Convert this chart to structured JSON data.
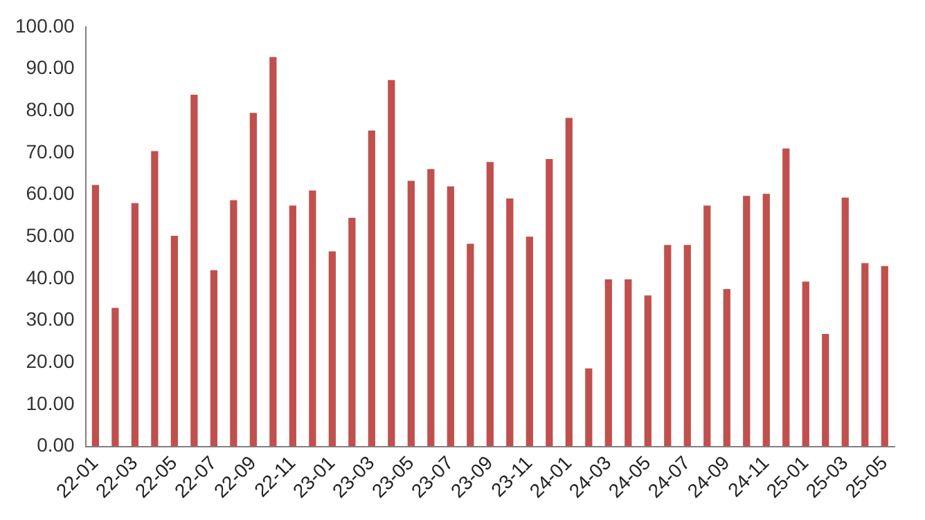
{
  "chart_data": {
    "type": "bar",
    "categories": [
      "22-01",
      null,
      "22-03",
      null,
      "22-05",
      null,
      "22-07",
      null,
      "22-09",
      null,
      "22-11",
      null,
      "23-01",
      null,
      "23-03",
      null,
      "23-05",
      null,
      "23-07",
      null,
      "23-09",
      null,
      "23-11",
      null,
      "24-01",
      null,
      "24-03",
      null,
      "24-05",
      null,
      "24-07",
      null,
      "24-09",
      null,
      "24-11",
      null,
      "25-01",
      null,
      "25-03",
      null,
      "25-05"
    ],
    "values": [
      62.3,
      33,
      58,
      70.4,
      50.2,
      83.8,
      42,
      58.7,
      79.5,
      92.8,
      57.4,
      61,
      46.5,
      54.5,
      75.3,
      87.3,
      63.3,
      66.1,
      62,
      48.3,
      67.8,
      59.1,
      50,
      68.5,
      78.3,
      18.6,
      39.8,
      39.8,
      36,
      48,
      48,
      57.4,
      37.5,
      59.7,
      60.2,
      71,
      39.3,
      26.8,
      59.3,
      43.7,
      43
    ],
    "color": "#c0504d",
    "ylim": [
      0,
      100
    ],
    "yticks": [
      {
        "value": 0,
        "label": "0.00"
      },
      {
        "value": 10,
        "label": "10.00"
      },
      {
        "value": 20,
        "label": "20.00"
      },
      {
        "value": 30,
        "label": "30.00"
      },
      {
        "value": 40,
        "label": "40.00"
      },
      {
        "value": 50,
        "label": "50.00"
      },
      {
        "value": 60,
        "label": "60.00"
      },
      {
        "value": 70,
        "label": "70.00"
      },
      {
        "value": 80,
        "label": "80.00"
      },
      {
        "value": 90,
        "label": "90.00"
      },
      {
        "value": 100,
        "label": "100.00"
      }
    ],
    "grid": false
  }
}
